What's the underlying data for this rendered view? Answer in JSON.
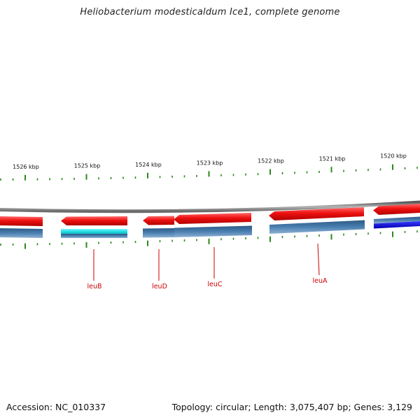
{
  "title": "Heliobacterium modesticaldum Ice1, complete genome",
  "footer": {
    "accession": "Accession: NC_010337",
    "summary": "Topology: circular; Length: 3,075,407 bp; Genes: 3,129"
  },
  "colors": {
    "forward_cds": "#ee1111",
    "reverse_cds": "#4a7fb0",
    "highlight_cyan": "#22e0e8",
    "highlight_blue": "#1010dd",
    "backbone": "#8a8a8a",
    "ticks": "#2a8a1a",
    "labels": "#cc0000"
  },
  "scale_labels": [
    "1526 kbp",
    "1525 kbp",
    "1524 kbp",
    "1523 kbp",
    "1522 kbp",
    "1521 kbp",
    "1520 kbp"
  ],
  "gene_labels": [
    "leuB",
    "leuD",
    "leuC",
    "leuA"
  ]
}
